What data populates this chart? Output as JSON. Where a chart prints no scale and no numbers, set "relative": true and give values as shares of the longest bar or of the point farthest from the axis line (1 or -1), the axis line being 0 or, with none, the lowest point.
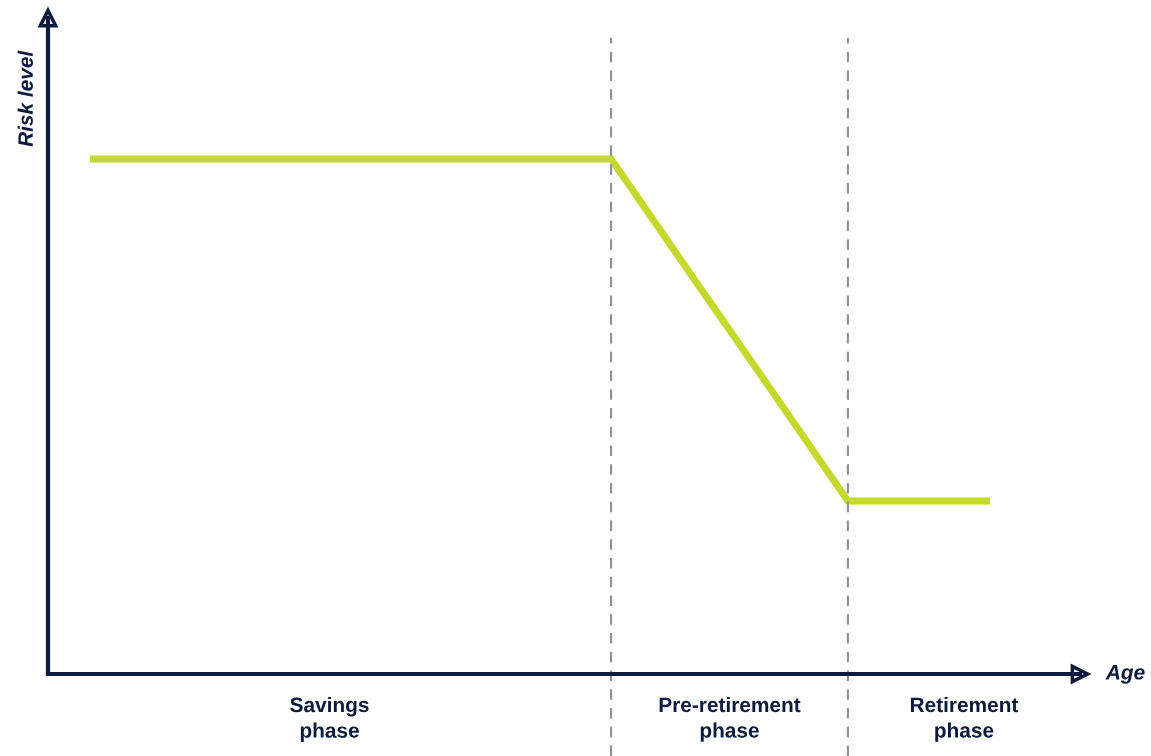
{
  "chart_data": {
    "type": "line",
    "relative": true,
    "xlabel": "Age",
    "ylabel": "Risk level",
    "categories": [
      null,
      null,
      null,
      null,
      null,
      null,
      null,
      null,
      null,
      null,
      null,
      null,
      null,
      null,
      null,
      null,
      null,
      null,
      null,
      null
    ],
    "marker": "none",
    "line_style": "solid",
    "series": [
      {
        "color": "#c5d92d",
        "values": [
          1,
          1,
          1,
          1,
          1,
          1,
          1,
          1,
          1,
          1,
          1,
          1,
          0.867,
          0.734,
          0.602,
          0.469,
          0.336,
          0.336,
          0.336,
          0.336
        ]
      }
    ],
    "annotations": [
      "Savings\nphase",
      "Pre-retirement\nphase",
      "Retirement\nphase"
    ]
  }
}
